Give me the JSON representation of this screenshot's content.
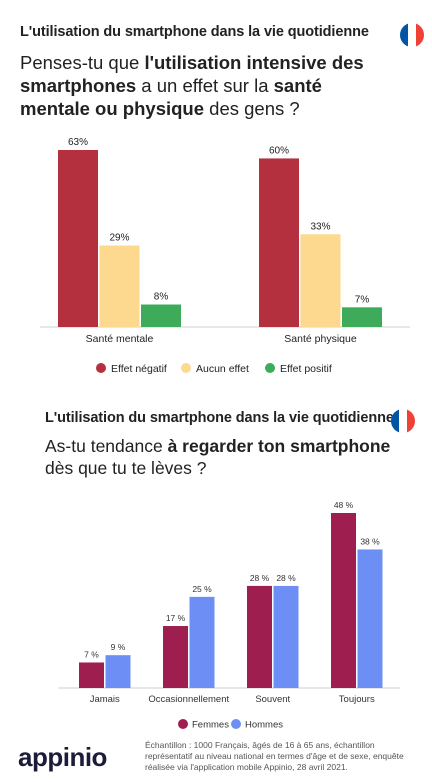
{
  "section1": {
    "header": "L'utilisation du smartphone dans la vie quotidienne",
    "question": [
      {
        "t": "Penses-tu que ",
        "b": false
      },
      {
        "t": "l'utilisation intensive des smartphones",
        "b": true
      },
      {
        "t": " a un effet sur la ",
        "b": false
      },
      {
        "t": "santé mentale ou physique",
        "b": true
      },
      {
        "t": " des gens ?",
        "b": false
      }
    ],
    "flag_colors": [
      "#0055a4",
      "#ffffff",
      "#ef4135"
    ]
  },
  "section2": {
    "header": "L'utilisation du smartphone dans la vie quotidienne",
    "question": [
      {
        "t": "As-tu tendance ",
        "b": false
      },
      {
        "t": "à regarder ton smartphone",
        "b": true
      },
      {
        "t": " dès que tu te lèves ?",
        "b": false
      }
    ],
    "flag_colors": [
      "#0055a4",
      "#ffffff",
      "#ef4135"
    ]
  },
  "footer": {
    "logo": "appinio",
    "note": "Échantillon : 1000 Français, âgés de 16 à 65 ans, échantillon représentatif au niveau national en termes d'âge et de sexe, enquête réalisée via l'application mobile Appinio, 28 avril 2021."
  },
  "chart_data": [
    {
      "type": "bar",
      "categories": [
        "Santé mentale",
        "Santé physique"
      ],
      "series": [
        {
          "name": "Effet négatif",
          "color": "#b5303f",
          "values": [
            63,
            60
          ],
          "labels": [
            "63%",
            "60%"
          ]
        },
        {
          "name": "Aucun effet",
          "color": "#fcd98e",
          "values": [
            29,
            33
          ],
          "labels": [
            "29%",
            "33%"
          ]
        },
        {
          "name": "Effet positif",
          "color": "#3dab5a",
          "values": [
            8,
            7
          ],
          "labels": [
            "8%",
            "7%"
          ]
        }
      ],
      "ylim": [
        0,
        63
      ],
      "legend": "bottom",
      "grid": false
    },
    {
      "type": "bar",
      "categories": [
        "Jamais",
        "Occasionnellement",
        "Souvent",
        "Toujours"
      ],
      "series": [
        {
          "name": "Femmes",
          "color": "#9e1f4f",
          "values": [
            7,
            17,
            28,
            48
          ],
          "labels": [
            "7 %",
            "17 %",
            "28 %",
            "48 %"
          ]
        },
        {
          "name": "Hommes",
          "color": "#6d8ff5",
          "values": [
            9,
            25,
            28,
            38
          ],
          "labels": [
            "9 %",
            "25 %",
            "28 %",
            "38 %"
          ]
        }
      ],
      "ylim": [
        0,
        48
      ],
      "legend": "bottom",
      "grid": false
    }
  ]
}
